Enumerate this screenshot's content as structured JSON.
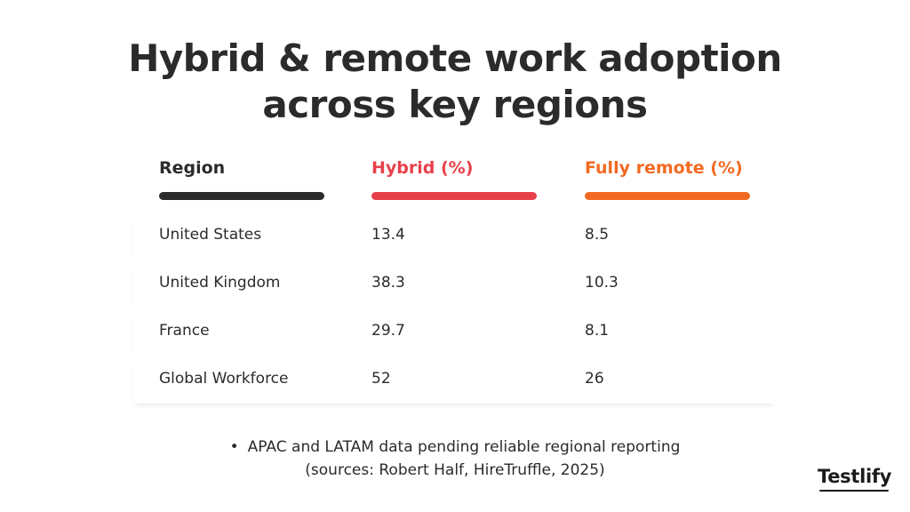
{
  "title": {
    "line1": "Hybrid & remote work adoption",
    "line2": "across key regions"
  },
  "colors": {
    "region": "#2b2b2b",
    "hybrid": "#e8404a",
    "remote": "#f26a21"
  },
  "chart_data": {
    "type": "table",
    "columns": [
      "Region",
      "Hybrid (%)",
      "Fully remote (%)"
    ],
    "rows": [
      {
        "region": "United States",
        "hybrid": "13.4",
        "remote": "8.5"
      },
      {
        "region": "United Kingdom",
        "hybrid": "38.3",
        "remote": "10.3"
      },
      {
        "region": "France",
        "hybrid": "29.7",
        "remote": "8.1"
      },
      {
        "region": "Global Workforce",
        "hybrid": "52",
        "remote": "26"
      }
    ]
  },
  "note": {
    "bullet": "•",
    "line1": "APAC and LATAM data pending reliable regional reporting",
    "line2": "(sources: Robert Half, HireTruffle, 2025)"
  },
  "logo": "Testlify"
}
